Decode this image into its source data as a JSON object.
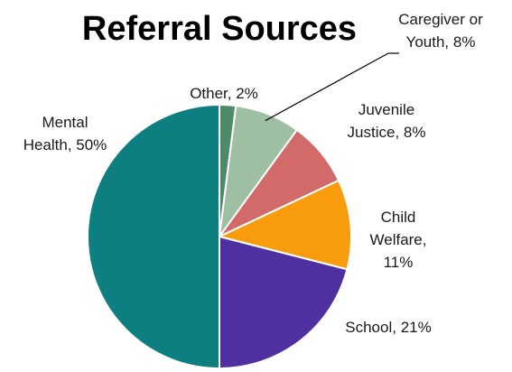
{
  "chart_data": {
    "type": "pie",
    "title": "Referral Sources",
    "start": "12 o'clock",
    "direction": "clockwise",
    "slices": [
      {
        "name": "Other",
        "value": 2,
        "color": "#4e8a6a",
        "label_lines": [
          "Other, 2%"
        ]
      },
      {
        "name": "Caregiver or Youth",
        "value": 8,
        "color": "#9fbfa3",
        "label_lines": [
          "Caregiver or",
          "Youth, 8%"
        ]
      },
      {
        "name": "Juvenile Justice",
        "value": 8,
        "color": "#d26a6a",
        "label_lines": [
          "Juvenile",
          "Justice, 8%"
        ]
      },
      {
        "name": "Child Welfare",
        "value": 11,
        "color": "#f89b0c",
        "label_lines": [
          "Child",
          "Welfare,",
          "11%"
        ]
      },
      {
        "name": "School",
        "value": 21,
        "color": "#5030a0",
        "label_lines": [
          "School, 21%"
        ]
      },
      {
        "name": "Mental Health",
        "value": 50,
        "color": "#0e7f80",
        "label_lines": [
          "Mental",
          "Health, 50%"
        ]
      }
    ]
  }
}
